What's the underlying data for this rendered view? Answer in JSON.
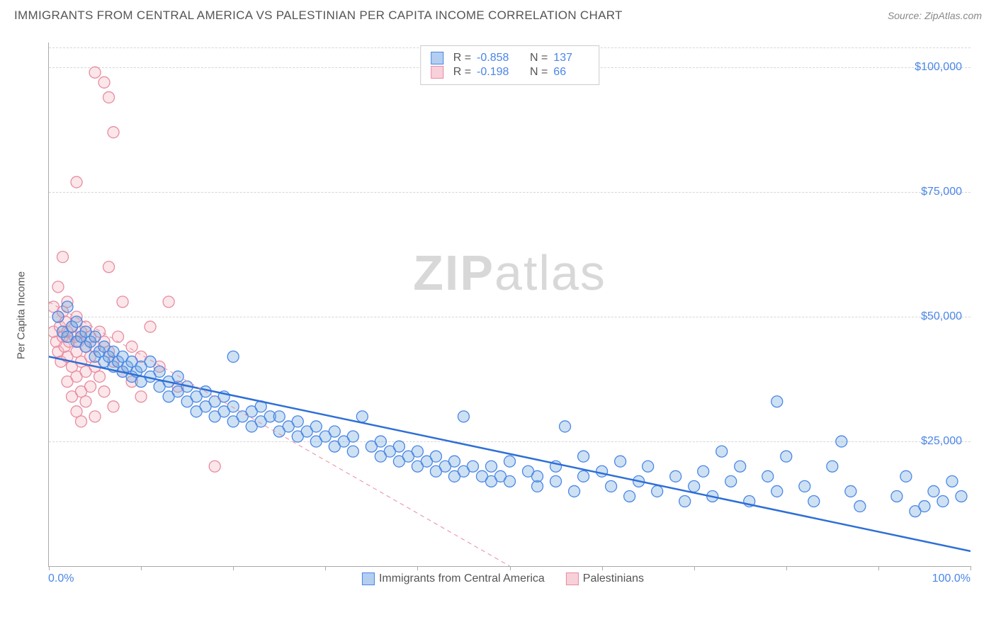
{
  "header": {
    "title": "IMMIGRANTS FROM CENTRAL AMERICA VS PALESTINIAN PER CAPITA INCOME CORRELATION CHART",
    "source": "Source: ZipAtlas.com"
  },
  "watermark": {
    "part1": "ZIP",
    "part2": "atlas"
  },
  "chart": {
    "type": "scatter",
    "background_color": "#ffffff",
    "grid_color": "#d5d5d5",
    "axis_color": "#aaaaaa",
    "ylabel": "Per Capita Income",
    "ylabel_fontsize": 15,
    "ylabel_color": "#555555",
    "xlim": [
      0,
      100
    ],
    "ylim": [
      0,
      105000
    ],
    "xticks": [
      0,
      10,
      20,
      30,
      40,
      50,
      60,
      70,
      80,
      90,
      100
    ],
    "yticks": [
      25000,
      50000,
      75000,
      100000
    ],
    "ytick_labels": [
      "$25,000",
      "$50,000",
      "$75,000",
      "$100,000"
    ],
    "ytick_color": "#4a86e8",
    "xtick_min_label": "0.0%",
    "xtick_max_label": "100.0%",
    "marker_radius": 8,
    "marker_fill_opacity": 0.35,
    "marker_stroke_width": 1.3,
    "series": [
      {
        "name": "Immigrants from Central America",
        "color": "#6fa8dc",
        "stroke": "#4a86e8",
        "stats": {
          "R": "-0.858",
          "N": "137"
        },
        "trend": {
          "x1": 0,
          "y1": 42000,
          "x2": 100,
          "y2": 3000,
          "color": "#2e6fd6",
          "width": 2.5,
          "dash": "none"
        },
        "points": [
          [
            1,
            50000
          ],
          [
            1.5,
            47000
          ],
          [
            2,
            52000
          ],
          [
            2,
            46000
          ],
          [
            2.5,
            48000
          ],
          [
            3,
            49000
          ],
          [
            3,
            45000
          ],
          [
            3.5,
            46000
          ],
          [
            4,
            47000
          ],
          [
            4,
            44000
          ],
          [
            4.5,
            45000
          ],
          [
            5,
            46000
          ],
          [
            5,
            42000
          ],
          [
            5.5,
            43000
          ],
          [
            6,
            44000
          ],
          [
            6,
            41000
          ],
          [
            6.5,
            42000
          ],
          [
            7,
            43000
          ],
          [
            7,
            40000
          ],
          [
            7.5,
            41000
          ],
          [
            8,
            42000
          ],
          [
            8,
            39000
          ],
          [
            8.5,
            40000
          ],
          [
            9,
            41000
          ],
          [
            9,
            38000
          ],
          [
            9.5,
            39000
          ],
          [
            10,
            40000
          ],
          [
            10,
            37000
          ],
          [
            11,
            38000
          ],
          [
            11,
            41000
          ],
          [
            12,
            36000
          ],
          [
            12,
            39000
          ],
          [
            13,
            37000
          ],
          [
            13,
            34000
          ],
          [
            14,
            35000
          ],
          [
            14,
            38000
          ],
          [
            15,
            33000
          ],
          [
            15,
            36000
          ],
          [
            16,
            34000
          ],
          [
            16,
            31000
          ],
          [
            17,
            32000
          ],
          [
            17,
            35000
          ],
          [
            18,
            33000
          ],
          [
            18,
            30000
          ],
          [
            19,
            31000
          ],
          [
            19,
            34000
          ],
          [
            20,
            32000
          ],
          [
            20,
            29000
          ],
          [
            20,
            42000
          ],
          [
            21,
            30000
          ],
          [
            22,
            31000
          ],
          [
            22,
            28000
          ],
          [
            23,
            29000
          ],
          [
            23,
            32000
          ],
          [
            24,
            30000
          ],
          [
            25,
            27000
          ],
          [
            25,
            30000
          ],
          [
            26,
            28000
          ],
          [
            27,
            26000
          ],
          [
            27,
            29000
          ],
          [
            28,
            27000
          ],
          [
            29,
            25000
          ],
          [
            29,
            28000
          ],
          [
            30,
            26000
          ],
          [
            31,
            24000
          ],
          [
            31,
            27000
          ],
          [
            32,
            25000
          ],
          [
            33,
            23000
          ],
          [
            33,
            26000
          ],
          [
            34,
            30000
          ],
          [
            35,
            24000
          ],
          [
            36,
            22000
          ],
          [
            36,
            25000
          ],
          [
            37,
            23000
          ],
          [
            38,
            21000
          ],
          [
            38,
            24000
          ],
          [
            39,
            22000
          ],
          [
            40,
            20000
          ],
          [
            40,
            23000
          ],
          [
            41,
            21000
          ],
          [
            42,
            19000
          ],
          [
            42,
            22000
          ],
          [
            43,
            20000
          ],
          [
            44,
            18000
          ],
          [
            44,
            21000
          ],
          [
            45,
            19000
          ],
          [
            45,
            30000
          ],
          [
            46,
            20000
          ],
          [
            47,
            18000
          ],
          [
            48,
            17000
          ],
          [
            48,
            20000
          ],
          [
            49,
            18000
          ],
          [
            50,
            21000
          ],
          [
            50,
            17000
          ],
          [
            52,
            19000
          ],
          [
            53,
            16000
          ],
          [
            53,
            18000
          ],
          [
            55,
            17000
          ],
          [
            55,
            20000
          ],
          [
            56,
            28000
          ],
          [
            57,
            15000
          ],
          [
            58,
            18000
          ],
          [
            58,
            22000
          ],
          [
            60,
            19000
          ],
          [
            61,
            16000
          ],
          [
            62,
            21000
          ],
          [
            63,
            14000
          ],
          [
            64,
            17000
          ],
          [
            65,
            20000
          ],
          [
            66,
            15000
          ],
          [
            68,
            18000
          ],
          [
            69,
            13000
          ],
          [
            70,
            16000
          ],
          [
            71,
            19000
          ],
          [
            72,
            14000
          ],
          [
            73,
            23000
          ],
          [
            74,
            17000
          ],
          [
            75,
            20000
          ],
          [
            76,
            13000
          ],
          [
            78,
            18000
          ],
          [
            79,
            15000
          ],
          [
            79,
            33000
          ],
          [
            80,
            22000
          ],
          [
            82,
            16000
          ],
          [
            83,
            13000
          ],
          [
            85,
            20000
          ],
          [
            86,
            25000
          ],
          [
            87,
            15000
          ],
          [
            88,
            12000
          ],
          [
            92,
            14000
          ],
          [
            93,
            18000
          ],
          [
            94,
            11000
          ],
          [
            96,
            15000
          ],
          [
            97,
            13000
          ],
          [
            99,
            14000
          ],
          [
            98,
            17000
          ],
          [
            95,
            12000
          ]
        ]
      },
      {
        "name": "Palestinians",
        "color": "#f4b6c2",
        "stroke": "#e88ca0",
        "stats": {
          "R": "-0.198",
          "N": "66"
        },
        "trend": {
          "x1": 0,
          "y1": 53000,
          "x2": 50,
          "y2": 0,
          "color": "#e88ca0",
          "width": 1,
          "dash": "6,5"
        },
        "points": [
          [
            0.5,
            47000
          ],
          [
            0.5,
            52000
          ],
          [
            0.8,
            45000
          ],
          [
            1,
            50000
          ],
          [
            1,
            43000
          ],
          [
            1,
            56000
          ],
          [
            1.2,
            48000
          ],
          [
            1.3,
            41000
          ],
          [
            1.5,
            46000
          ],
          [
            1.5,
            51000
          ],
          [
            1.5,
            62000
          ],
          [
            1.7,
            44000
          ],
          [
            1.8,
            49000
          ],
          [
            2,
            47000
          ],
          [
            2,
            42000
          ],
          [
            2,
            53000
          ],
          [
            2,
            37000
          ],
          [
            2.2,
            45000
          ],
          [
            2.5,
            48000
          ],
          [
            2.5,
            40000
          ],
          [
            2.5,
            34000
          ],
          [
            2.8,
            46000
          ],
          [
            3,
            43000
          ],
          [
            3,
            50000
          ],
          [
            3,
            38000
          ],
          [
            3,
            31000
          ],
          [
            3.2,
            45000
          ],
          [
            3.5,
            47000
          ],
          [
            3.5,
            41000
          ],
          [
            3.5,
            35000
          ],
          [
            3.5,
            29000
          ],
          [
            4,
            44000
          ],
          [
            4,
            48000
          ],
          [
            4,
            39000
          ],
          [
            4,
            33000
          ],
          [
            4.5,
            46000
          ],
          [
            4.5,
            42000
          ],
          [
            4.5,
            36000
          ],
          [
            5,
            99000
          ],
          [
            5,
            44000
          ],
          [
            5,
            40000
          ],
          [
            5,
            30000
          ],
          [
            5.5,
            47000
          ],
          [
            5.5,
            38000
          ],
          [
            6,
            97000
          ],
          [
            6,
            45000
          ],
          [
            6,
            35000
          ],
          [
            6.5,
            43000
          ],
          [
            6.5,
            94000
          ],
          [
            6.5,
            60000
          ],
          [
            7,
            87000
          ],
          [
            7,
            41000
          ],
          [
            7,
            32000
          ],
          [
            7.5,
            46000
          ],
          [
            8,
            39000
          ],
          [
            8,
            53000
          ],
          [
            9,
            44000
          ],
          [
            9,
            37000
          ],
          [
            10,
            42000
          ],
          [
            10,
            34000
          ],
          [
            11,
            48000
          ],
          [
            12,
            40000
          ],
          [
            13,
            53000
          ],
          [
            14,
            36000
          ],
          [
            18,
            20000
          ],
          [
            3,
            77000
          ]
        ]
      }
    ],
    "bottom_legend": [
      {
        "label": "Immigrants from Central America",
        "fill": "#b3cef0",
        "border": "#4a86e8"
      },
      {
        "label": "Palestinians",
        "fill": "#f8d0da",
        "border": "#e88ca0"
      }
    ],
    "stats_box": {
      "border_color": "#cccccc",
      "bg": "#ffffff",
      "label_color": "#555555",
      "value_color": "#4a86e8"
    }
  }
}
